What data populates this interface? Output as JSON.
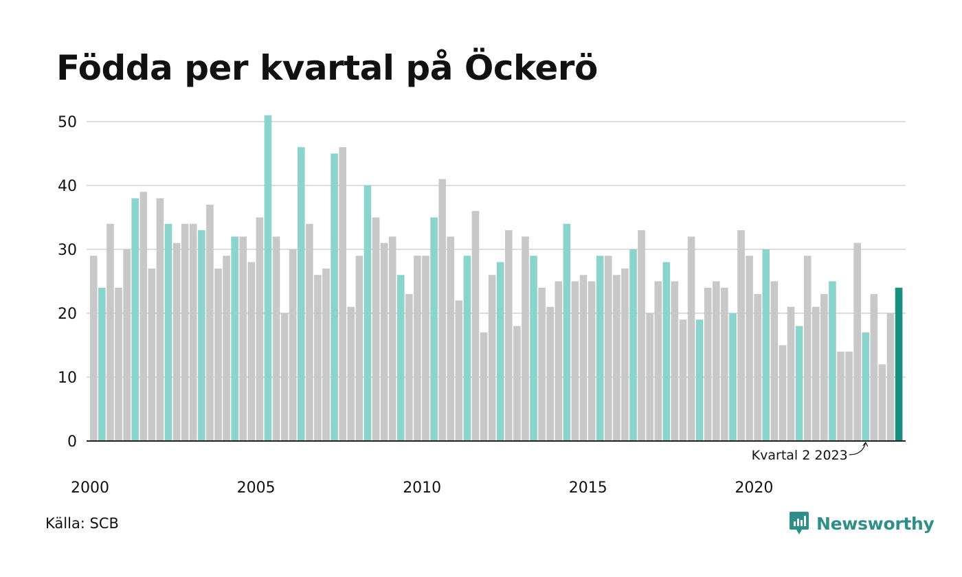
{
  "title": "Födda per kvartal på Öckerö",
  "source": "Källa: SCB",
  "brand": {
    "name": "Newsworthy",
    "icon": "newsworthy-logo-icon"
  },
  "colors": {
    "bar_default": "#c8c8c8",
    "bar_quarter2": "#8ad4cc",
    "bar_latest": "#16907f",
    "brand": "#2d9088",
    "grid": "#dddddd"
  },
  "chart_data": {
    "type": "bar",
    "title": "Födda per kvartal på Öckerö",
    "xlabel": "",
    "ylabel": "",
    "ylim": [
      0,
      50
    ],
    "yticks": [
      0,
      10,
      20,
      30,
      40,
      50
    ],
    "xticks": [
      "2000",
      "2005",
      "2010",
      "2015",
      "2020"
    ],
    "grid": true,
    "start": {
      "year": 2000,
      "quarter": 1
    },
    "highlight_quarter": 2,
    "annotation": {
      "text": "Kvartal 2 2023",
      "year": 2023,
      "quarter": 2
    },
    "values": [
      29,
      24,
      34,
      24,
      30,
      38,
      39,
      27,
      38,
      34,
      31,
      34,
      34,
      33,
      37,
      27,
      29,
      32,
      32,
      28,
      35,
      51,
      32,
      20,
      30,
      46,
      34,
      26,
      27,
      45,
      46,
      21,
      29,
      40,
      35,
      31,
      32,
      26,
      23,
      29,
      29,
      35,
      41,
      32,
      22,
      29,
      36,
      17,
      26,
      28,
      33,
      18,
      32,
      29,
      24,
      21,
      25,
      34,
      25,
      26,
      25,
      29,
      29,
      26,
      27,
      30,
      33,
      20,
      25,
      28,
      25,
      19,
      32,
      19,
      24,
      25,
      24,
      20,
      33,
      29,
      23,
      30,
      25,
      15,
      21,
      18,
      29,
      21,
      23,
      25,
      14,
      14,
      31,
      17,
      23,
      12,
      20,
      24
    ]
  }
}
